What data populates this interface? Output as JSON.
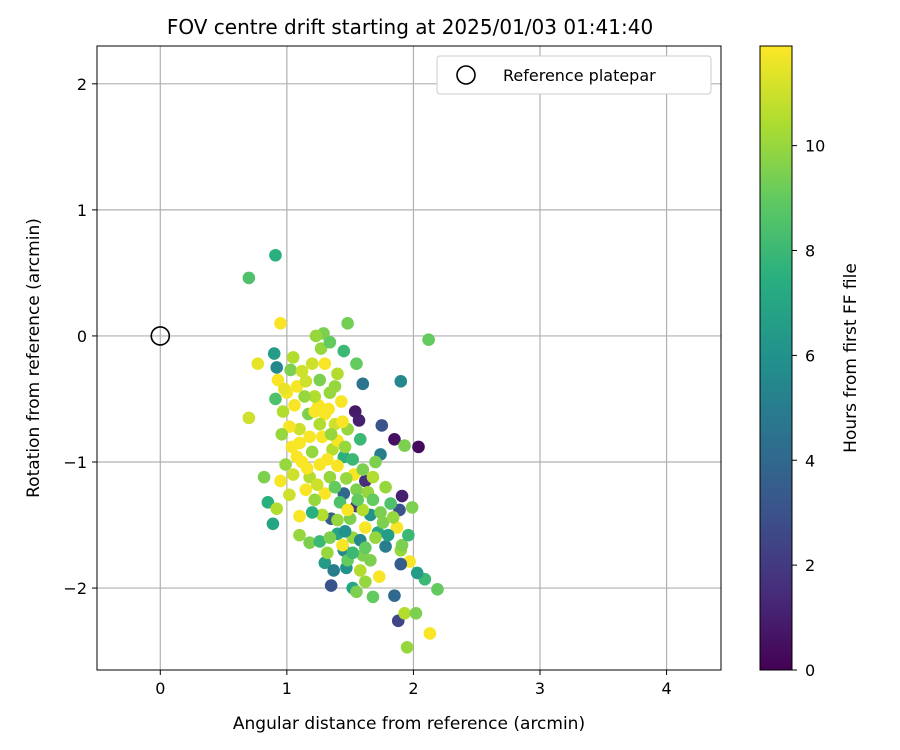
{
  "chart_data": {
    "type": "scatter",
    "title": "FOV centre drift starting at 2025/01/03 01:41:40",
    "xlabel": "Angular distance from reference (arcmin)",
    "ylabel": "Rotation from reference (arcmin)",
    "xlim": [
      -0.5,
      4.43
    ],
    "ylim": [
      -2.65,
      2.3
    ],
    "xticks": [
      0,
      1,
      2,
      3,
      4
    ],
    "yticks": [
      -2,
      -1,
      0,
      1,
      2
    ],
    "xtick_labels": [
      "0",
      "1",
      "2",
      "3",
      "4"
    ],
    "ytick_labels": [
      "−2",
      "−1",
      "0",
      "1",
      "2"
    ],
    "grid": true,
    "legend": {
      "position": "top-right",
      "entries": [
        {
          "label": "Reference platepar",
          "marker": "open-circle"
        }
      ]
    },
    "reference_point": {
      "x": 0,
      "y": 0
    },
    "colorbar": {
      "label": "Hours from first FF file",
      "colormap": "viridis",
      "range": [
        0,
        11.9
      ],
      "ticks": [
        0,
        2,
        4,
        6,
        8,
        10
      ],
      "tick_labels": [
        "0",
        "2",
        "4",
        "6",
        "8",
        "10"
      ]
    },
    "points": [
      [
        0.7,
        0.46,
        8.5
      ],
      [
        0.91,
        0.64,
        7.5
      ],
      [
        1.29,
        0.02,
        9.5
      ],
      [
        1.48,
        0.1,
        9.3
      ],
      [
        2.12,
        -0.03,
        9.0
      ],
      [
        1.05,
        -0.17,
        10.5
      ],
      [
        1.23,
        0.0,
        10.0
      ],
      [
        1.9,
        -0.36,
        5.5
      ],
      [
        0.95,
        0.1,
        11.8
      ],
      [
        0.9,
        -0.14,
        6.5
      ],
      [
        1.55,
        -0.22,
        9.0
      ],
      [
        1.45,
        -0.12,
        8.0
      ],
      [
        1.6,
        -0.38,
        4.5
      ],
      [
        1.4,
        -0.3,
        10.5
      ],
      [
        0.77,
        -0.22,
        11.5
      ],
      [
        0.7,
        -0.65,
        11.0
      ],
      [
        1.54,
        -0.6,
        0.8
      ],
      [
        1.57,
        -0.67,
        1.0
      ],
      [
        1.85,
        -0.82,
        0.5
      ],
      [
        1.93,
        -0.87,
        9.5
      ],
      [
        2.04,
        -0.88,
        0.3
      ],
      [
        1.75,
        -0.71,
        3.0
      ],
      [
        1.74,
        -0.94,
        5.0
      ],
      [
        0.91,
        -0.5,
        8.5
      ],
      [
        0.93,
        -0.35,
        11.8
      ],
      [
        0.92,
        -0.25,
        5.5
      ],
      [
        1.03,
        -0.27,
        9.5
      ],
      [
        1.2,
        -0.22,
        11.0
      ],
      [
        1.27,
        -0.1,
        10.0
      ],
      [
        1.34,
        -0.05,
        9.0
      ],
      [
        0.82,
        -1.12,
        9.5
      ],
      [
        0.85,
        -1.32,
        7.5
      ],
      [
        0.89,
        -1.49,
        7.0
      ],
      [
        0.92,
        -1.37,
        10.5
      ],
      [
        1.02,
        -1.26,
        11.0
      ],
      [
        1.1,
        -1.43,
        11.8
      ],
      [
        1.1,
        -1.58,
        10.0
      ],
      [
        1.18,
        -1.64,
        9.5
      ],
      [
        1.26,
        -1.63,
        8.0
      ],
      [
        1.3,
        -1.8,
        6.5
      ],
      [
        1.37,
        -1.86,
        5.0
      ],
      [
        1.35,
        -1.98,
        3.0
      ],
      [
        1.47,
        -1.84,
        6.0
      ],
      [
        1.52,
        -2.0,
        7.0
      ],
      [
        1.55,
        -2.03,
        9.5
      ],
      [
        1.62,
        -1.95,
        10.0
      ],
      [
        1.68,
        -2.07,
        9.0
      ],
      [
        1.85,
        -2.06,
        4.0
      ],
      [
        1.88,
        -2.26,
        2.5
      ],
      [
        1.93,
        -2.2,
        10.5
      ],
      [
        2.02,
        -2.2,
        9.5
      ],
      [
        1.95,
        -2.47,
        10.0
      ],
      [
        2.13,
        -2.36,
        11.8
      ],
      [
        2.19,
        -2.01,
        9.0
      ],
      [
        2.09,
        -1.93,
        8.0
      ],
      [
        2.03,
        -1.88,
        6.5
      ],
      [
        1.97,
        -1.79,
        11.8
      ],
      [
        1.9,
        -1.81,
        3.5
      ],
      [
        1.9,
        -1.7,
        10.0
      ],
      [
        1.91,
        -1.66,
        9.5
      ],
      [
        1.87,
        -1.52,
        11.8
      ],
      [
        1.89,
        -1.38,
        3.0
      ],
      [
        1.99,
        -1.36,
        9.5
      ],
      [
        1.91,
        -1.27,
        1.0
      ],
      [
        1.96,
        -1.58,
        8.0
      ],
      [
        1.73,
        -1.91,
        11.8
      ],
      [
        1.78,
        -1.67,
        5.0
      ],
      [
        1.62,
        -1.52,
        11.8
      ],
      [
        1.6,
        -1.74,
        9.5
      ],
      [
        1.52,
        -1.6,
        10.0
      ],
      [
        1.45,
        -1.7,
        5.5
      ],
      [
        1.4,
        -1.57,
        7.0
      ],
      [
        1.35,
        -1.45,
        3.5
      ],
      [
        1.45,
        -1.25,
        4.0
      ],
      [
        1.55,
        -1.35,
        2.0
      ],
      [
        1.62,
        -1.15,
        1.5
      ],
      [
        1.7,
        -1.0,
        9.5
      ],
      [
        1.78,
        -1.2,
        10.0
      ],
      [
        1.82,
        -1.33,
        8.5
      ],
      [
        1.66,
        -1.42,
        6.0
      ],
      [
        1.32,
        -1.72,
        10.0
      ],
      [
        1.48,
        -1.78,
        9.0
      ],
      [
        1.58,
        -1.86,
        10.5
      ],
      [
        1.72,
        -1.56,
        7.0
      ],
      [
        1.74,
        -1.4,
        9.5
      ],
      [
        1.64,
        -1.24,
        10.0
      ],
      [
        1.53,
        -1.1,
        11.8
      ],
      [
        1.45,
        -0.96,
        7.5
      ],
      [
        1.36,
        -0.9,
        10.5
      ],
      [
        1.48,
        -0.74,
        10.0
      ],
      [
        1.58,
        -0.82,
        8.0
      ],
      [
        1.43,
        -0.52,
        11.8
      ],
      [
        1.34,
        -0.45,
        10.0
      ],
      [
        1.25,
        -0.55,
        11.8
      ],
      [
        1.17,
        -0.62,
        9.5
      ],
      [
        1.1,
        -0.74,
        11.0
      ],
      [
        1.04,
        -0.88,
        11.8
      ],
      [
        0.99,
        -1.02,
        10.0
      ],
      [
        0.95,
        -1.15,
        11.8
      ],
      [
        0.97,
        -0.6,
        10.5
      ],
      [
        1.0,
        -0.45,
        11.8
      ],
      [
        1.08,
        -0.4,
        11.8
      ],
      [
        1.15,
        -0.36,
        11.0
      ],
      [
        1.22,
        -0.48,
        10.5
      ],
      [
        1.3,
        -0.62,
        11.8
      ],
      [
        1.38,
        -0.7,
        11.0
      ],
      [
        1.28,
        -0.8,
        11.8
      ],
      [
        1.2,
        -0.92,
        10.0
      ],
      [
        1.12,
        -1.0,
        11.8
      ],
      [
        1.05,
        -1.1,
        11.0
      ],
      [
        1.18,
        -1.12,
        10.5
      ],
      [
        1.26,
        -1.02,
        11.8
      ],
      [
        1.34,
        -1.12,
        10.0
      ],
      [
        1.4,
        -1.03,
        11.8
      ],
      [
        1.47,
        -1.13,
        10.0
      ],
      [
        1.55,
        -1.22,
        9.5
      ],
      [
        1.3,
        -1.25,
        11.8
      ],
      [
        1.22,
        -1.3,
        10.0
      ],
      [
        1.15,
        -1.22,
        11.8
      ],
      [
        1.28,
        -1.42,
        10.5
      ],
      [
        1.2,
        -1.4,
        7.5
      ],
      [
        1.42,
        -1.32,
        8.5
      ],
      [
        1.5,
        -1.45,
        9.5
      ],
      [
        1.6,
        -1.38,
        10.5
      ],
      [
        1.68,
        -1.3,
        9.0
      ],
      [
        1.1,
        -0.85,
        11.8
      ],
      [
        1.02,
        -0.72,
        11.8
      ],
      [
        0.96,
        -0.78,
        10.0
      ],
      [
        1.06,
        -0.55,
        11.8
      ],
      [
        1.14,
        -0.48,
        10.0
      ],
      [
        1.26,
        -0.7,
        10.5
      ],
      [
        1.33,
        -0.58,
        11.8
      ],
      [
        1.4,
        -0.83,
        11.8
      ],
      [
        1.18,
        -0.8,
        11.8
      ],
      [
        1.08,
        -0.96,
        11.8
      ],
      [
        1.22,
        -0.6,
        11.8
      ],
      [
        1.35,
        -0.78,
        10.0
      ],
      [
        1.44,
        -0.68,
        11.8
      ],
      [
        1.16,
        -1.05,
        11.8
      ],
      [
        1.24,
        -1.18,
        11.0
      ],
      [
        1.32,
        -0.98,
        11.8
      ],
      [
        1.38,
        -1.2,
        9.0
      ],
      [
        1.46,
        -1.55,
        6.0
      ],
      [
        1.52,
        -1.72,
        8.0
      ],
      [
        1.58,
        -1.62,
        5.5
      ],
      [
        1.66,
        -1.78,
        9.5
      ],
      [
        1.7,
        -1.6,
        10.0
      ],
      [
        1.76,
        -1.48,
        9.5
      ],
      [
        1.8,
        -1.58,
        6.5
      ],
      [
        1.84,
        -1.44,
        10.0
      ],
      [
        1.26,
        -0.35,
        9.5
      ],
      [
        1.12,
        -0.28,
        11.0
      ],
      [
        0.98,
        -0.42,
        11.5
      ],
      [
        1.3,
        -0.22,
        11.8
      ],
      [
        1.38,
        -0.4,
        10.0
      ],
      [
        1.46,
        -0.88,
        10.0
      ],
      [
        1.52,
        -0.98,
        8.0
      ],
      [
        1.6,
        -1.06,
        9.5
      ],
      [
        1.68,
        -1.12,
        10.5
      ],
      [
        1.56,
        -1.3,
        9.0
      ],
      [
        1.48,
        -1.38,
        11.8
      ],
      [
        1.4,
        -1.46,
        10.0
      ],
      [
        1.34,
        -1.6,
        9.5
      ],
      [
        1.44,
        -1.66,
        11.8
      ],
      [
        1.62,
        -1.68,
        9.0
      ]
    ]
  }
}
